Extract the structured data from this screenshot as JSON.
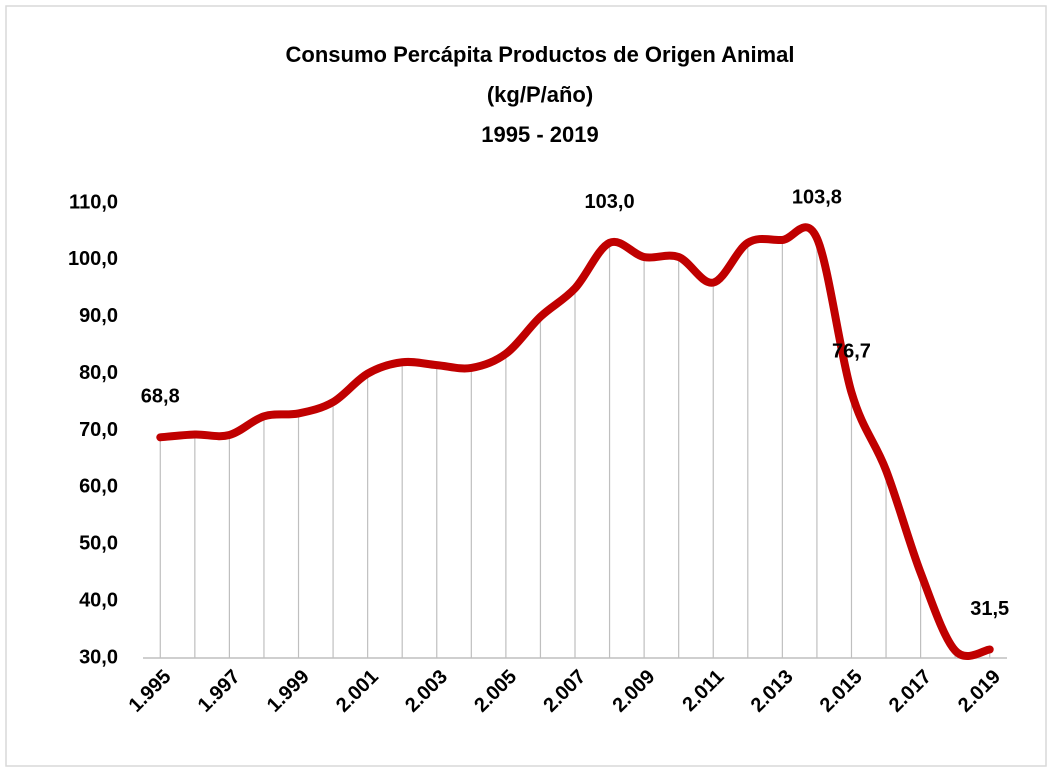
{
  "chart_data": {
    "type": "line",
    "title": "Consumo Percápita Productos de Origen Animal",
    "subtitle": "(kg/P/año)",
    "period": "1995 - 2019",
    "categories": [
      "1.995",
      null,
      "1.997",
      null,
      "1.999",
      null,
      "2.001",
      null,
      "2.003",
      null,
      "2.005",
      null,
      "2.007",
      null,
      "2.009",
      null,
      "2.011",
      null,
      "2.013",
      null,
      "2.015",
      null,
      "2.017",
      null,
      "2.019"
    ],
    "values": [
      68.8,
      69.3,
      69.2,
      72.5,
      73,
      75,
      80,
      82,
      81.5,
      81,
      83.5,
      90,
      95,
      103.0,
      100.5,
      100.5,
      96,
      103,
      103.5,
      103.8,
      76.7,
      63,
      45,
      31.3,
      31.5
    ],
    "value_labels": [
      "68,8",
      null,
      null,
      null,
      null,
      null,
      null,
      null,
      null,
      null,
      null,
      null,
      null,
      "103,0",
      null,
      null,
      null,
      null,
      null,
      "103,8",
      "76,7",
      null,
      null,
      null,
      "31,5"
    ],
    "color": "#c00000",
    "ylim": [
      30,
      110
    ],
    "yticks": [
      {
        "value": 30,
        "label": "30,0"
      },
      {
        "value": 40,
        "label": "40,0"
      },
      {
        "value": 50,
        "label": "50,0"
      },
      {
        "value": 60,
        "label": "60,0"
      },
      {
        "value": 70,
        "label": "70,0"
      },
      {
        "value": 80,
        "label": "80,0"
      },
      {
        "value": 90,
        "label": "90,0"
      },
      {
        "value": 100,
        "label": "100,0"
      },
      {
        "value": 110,
        "label": "110,0"
      }
    ],
    "grid": false,
    "drop_lines": true
  }
}
